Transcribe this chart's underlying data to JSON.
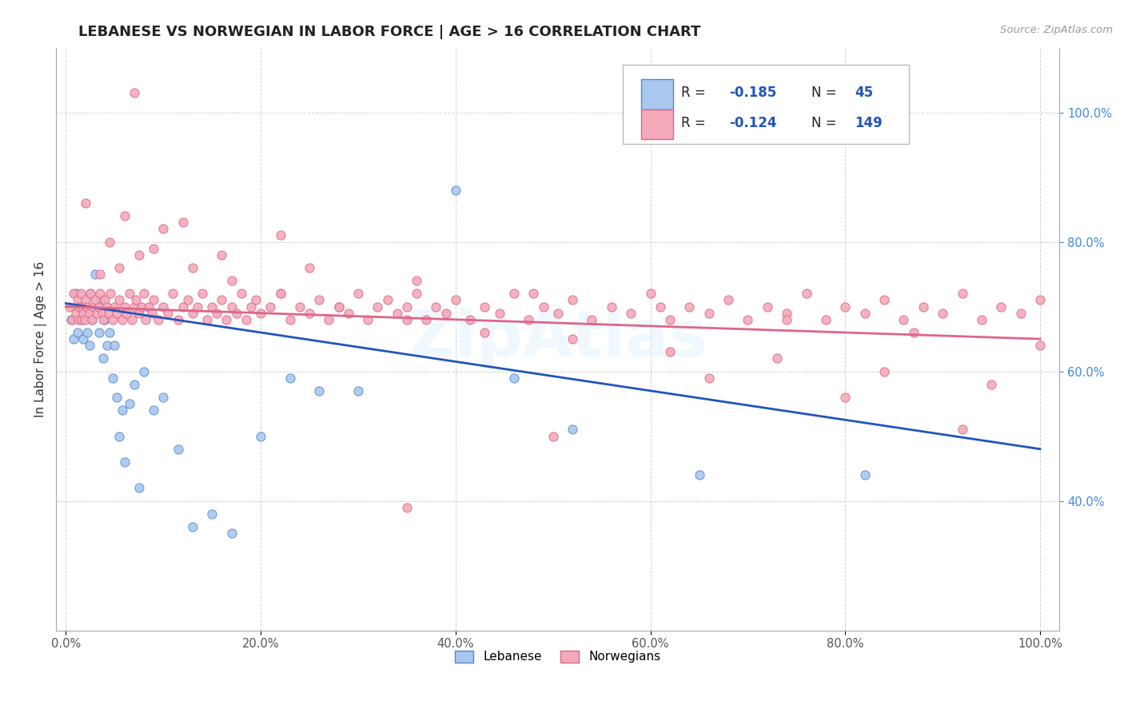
{
  "title": "LEBANESE VS NORWEGIAN IN LABOR FORCE | AGE > 16 CORRELATION CHART",
  "source_text": "Source: ZipAtlas.com",
  "ylabel": "In Labor Force | Age > 16",
  "watermark": "ZipAtlas",
  "xlim": [
    -0.01,
    1.02
  ],
  "ylim": [
    0.2,
    1.1
  ],
  "xticks": [
    0.0,
    0.2,
    0.4,
    0.6,
    0.8,
    1.0
  ],
  "xtick_labels": [
    "0.0%",
    "20.0%",
    "40.0%",
    "60.0%",
    "80.0%",
    "100.0%"
  ],
  "ytick_values": [
    0.4,
    0.6,
    0.8,
    1.0
  ],
  "ytick_labels": [
    "40.0%",
    "60.0%",
    "80.0%",
    "100.0%"
  ],
  "lebanese_color": "#A8C8F0",
  "norwegian_color": "#F4AABB",
  "lebanese_edge_color": "#5588CC",
  "norwegian_edge_color": "#DD6688",
  "lebanese_line_color": "#2255BB",
  "norwegian_line_color": "#DD6688",
  "title_fontsize": 13,
  "background_color": "#FFFFFF",
  "grid_color": "#CCCCCC",
  "legend_R_lebanese": "-0.185",
  "legend_N_lebanese": "45",
  "legend_R_norwegian": "-0.124",
  "legend_N_norwegian": "149",
  "lb_x": [
    0.005,
    0.008,
    0.01,
    0.012,
    0.015,
    0.016,
    0.018,
    0.02,
    0.022,
    0.024,
    0.025,
    0.027,
    0.03,
    0.032,
    0.034,
    0.036,
    0.038,
    0.04,
    0.042,
    0.045,
    0.048,
    0.05,
    0.052,
    0.055,
    0.058,
    0.06,
    0.065,
    0.07,
    0.075,
    0.08,
    0.09,
    0.1,
    0.115,
    0.13,
    0.15,
    0.17,
    0.2,
    0.23,
    0.26,
    0.3,
    0.4,
    0.46,
    0.52,
    0.65,
    0.82
  ],
  "lb_y": [
    0.68,
    0.65,
    0.72,
    0.66,
    0.7,
    0.68,
    0.65,
    0.69,
    0.66,
    0.64,
    0.72,
    0.68,
    0.75,
    0.7,
    0.66,
    0.71,
    0.62,
    0.68,
    0.64,
    0.66,
    0.59,
    0.64,
    0.56,
    0.5,
    0.54,
    0.46,
    0.55,
    0.58,
    0.42,
    0.6,
    0.54,
    0.56,
    0.48,
    0.36,
    0.38,
    0.35,
    0.5,
    0.59,
    0.57,
    0.57,
    0.88,
    0.59,
    0.51,
    0.44,
    0.44
  ],
  "no_x": [
    0.004,
    0.006,
    0.008,
    0.01,
    0.012,
    0.013,
    0.014,
    0.015,
    0.016,
    0.017,
    0.018,
    0.019,
    0.02,
    0.022,
    0.024,
    0.025,
    0.027,
    0.028,
    0.03,
    0.032,
    0.034,
    0.035,
    0.037,
    0.038,
    0.04,
    0.042,
    0.044,
    0.046,
    0.048,
    0.05,
    0.052,
    0.055,
    0.058,
    0.06,
    0.062,
    0.065,
    0.068,
    0.07,
    0.072,
    0.075,
    0.078,
    0.08,
    0.082,
    0.085,
    0.088,
    0.09,
    0.095,
    0.1,
    0.105,
    0.11,
    0.115,
    0.12,
    0.125,
    0.13,
    0.135,
    0.14,
    0.145,
    0.15,
    0.155,
    0.16,
    0.165,
    0.17,
    0.175,
    0.18,
    0.185,
    0.19,
    0.195,
    0.2,
    0.21,
    0.22,
    0.23,
    0.24,
    0.25,
    0.26,
    0.27,
    0.28,
    0.29,
    0.3,
    0.31,
    0.32,
    0.33,
    0.34,
    0.35,
    0.36,
    0.37,
    0.38,
    0.39,
    0.4,
    0.415,
    0.43,
    0.445,
    0.46,
    0.475,
    0.49,
    0.505,
    0.52,
    0.54,
    0.56,
    0.58,
    0.6,
    0.62,
    0.64,
    0.66,
    0.68,
    0.7,
    0.72,
    0.74,
    0.76,
    0.78,
    0.8,
    0.82,
    0.84,
    0.86,
    0.88,
    0.9,
    0.92,
    0.94,
    0.96,
    0.98,
    1.0,
    0.035,
    0.055,
    0.075,
    0.1,
    0.13,
    0.17,
    0.22,
    0.28,
    0.35,
    0.43,
    0.52,
    0.62,
    0.73,
    0.84,
    0.95,
    0.045,
    0.09,
    0.16,
    0.25,
    0.36,
    0.48,
    0.61,
    0.74,
    0.87,
    1.0,
    0.02,
    0.06,
    0.12,
    0.22,
    0.35,
    0.5,
    0.66,
    0.8,
    0.92,
    0.07
  ],
  "no_y": [
    0.7,
    0.68,
    0.72,
    0.69,
    0.71,
    0.68,
    0.7,
    0.72,
    0.68,
    0.7,
    0.69,
    0.68,
    0.71,
    0.7,
    0.69,
    0.72,
    0.68,
    0.7,
    0.71,
    0.69,
    0.7,
    0.72,
    0.69,
    0.68,
    0.71,
    0.7,
    0.69,
    0.72,
    0.68,
    0.7,
    0.69,
    0.71,
    0.68,
    0.7,
    0.69,
    0.72,
    0.68,
    0.7,
    0.71,
    0.69,
    0.7,
    0.72,
    0.68,
    0.7,
    0.69,
    0.71,
    0.68,
    0.7,
    0.69,
    0.72,
    0.68,
    0.7,
    0.71,
    0.69,
    0.7,
    0.72,
    0.68,
    0.7,
    0.69,
    0.71,
    0.68,
    0.7,
    0.69,
    0.72,
    0.68,
    0.7,
    0.71,
    0.69,
    0.7,
    0.72,
    0.68,
    0.7,
    0.69,
    0.71,
    0.68,
    0.7,
    0.69,
    0.72,
    0.68,
    0.7,
    0.71,
    0.69,
    0.7,
    0.72,
    0.68,
    0.7,
    0.69,
    0.71,
    0.68,
    0.7,
    0.69,
    0.72,
    0.68,
    0.7,
    0.69,
    0.71,
    0.68,
    0.7,
    0.69,
    0.72,
    0.68,
    0.7,
    0.69,
    0.71,
    0.68,
    0.7,
    0.69,
    0.72,
    0.68,
    0.7,
    0.69,
    0.71,
    0.68,
    0.7,
    0.69,
    0.72,
    0.68,
    0.7,
    0.69,
    0.71,
    0.75,
    0.76,
    0.78,
    0.82,
    0.76,
    0.74,
    0.72,
    0.7,
    0.68,
    0.66,
    0.65,
    0.63,
    0.62,
    0.6,
    0.58,
    0.8,
    0.79,
    0.78,
    0.76,
    0.74,
    0.72,
    0.7,
    0.68,
    0.66,
    0.64,
    0.86,
    0.84,
    0.83,
    0.81,
    0.39,
    0.5,
    0.59,
    0.56,
    0.51,
    1.03
  ],
  "lb_line_x0": 0.0,
  "lb_line_x1": 1.0,
  "lb_line_y0": 0.705,
  "lb_line_y1": 0.48,
  "no_line_x0": 0.0,
  "no_line_x1": 1.0,
  "no_line_y0": 0.7,
  "no_line_y1": 0.65
}
